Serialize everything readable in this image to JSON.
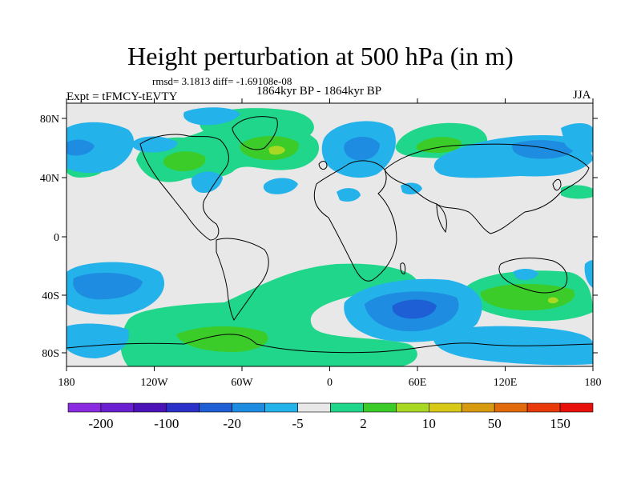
{
  "title": "Height perturbation at 500 hPa (in m)",
  "stats_label": "rmsd= 3.1813 diff= -1.69108e-08",
  "period_label": "1864kyr BP - 1864kyr BP",
  "experiment_label": "Expt = tFMCY-tEVTY",
  "season_label": "JJA",
  "lat_ticks": [
    "80N",
    "40N",
    "0",
    "40S",
    "80S"
  ],
  "lon_ticks": [
    "180",
    "120W",
    "60W",
    "0",
    "60E",
    "120E",
    "180"
  ],
  "colorbar": {
    "colors": [
      "#8a2be2",
      "#6a1fd0",
      "#4b12b8",
      "#2a30c8",
      "#1f5fd6",
      "#1e8ce0",
      "#24b2ea",
      "#e8e8e8",
      "#1fd68a",
      "#3ccc2a",
      "#a8d824",
      "#d8c818",
      "#d89a10",
      "#e06a0c",
      "#e83a0a",
      "#e8100a"
    ],
    "labels": [
      "-200",
      "-100",
      "-20",
      "-5",
      "2",
      "10",
      "50",
      "150"
    ]
  }
}
